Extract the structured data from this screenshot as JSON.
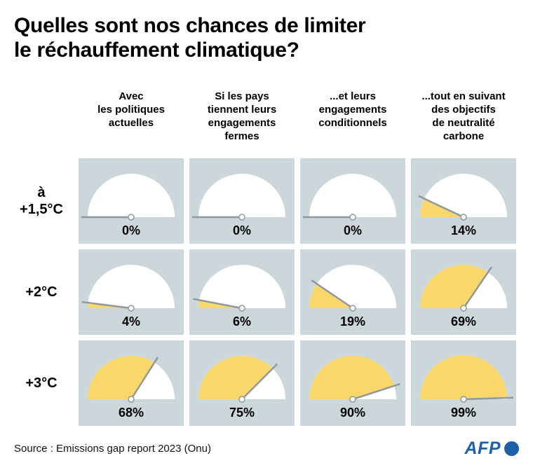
{
  "title": "Quelles sont nos chances de limiter\nle réchauffement climatique?",
  "columns": [
    "Avec\nles politiques\nactuelles",
    "Si les pays\ntiennent leurs\nengagements\nfermes",
    "...et leurs\nengagements\nconditionnels",
    "...tout en suivant\ndes objectifs\nde neutralité\ncarbone"
  ],
  "row_labels": [
    "à\n+1,5°C",
    "+2°C",
    "+3°C"
  ],
  "chart_data": {
    "type": "gauge",
    "unit": "%",
    "range": [
      0,
      100
    ],
    "title": "Quelles sont nos chances de limiter le réchauffement climatique?",
    "columns": [
      "Avec les politiques actuelles",
      "Si les pays tiennent leurs engagements fermes",
      "...et leurs engagements conditionnels",
      "...tout en suivant des objectifs de neutralité carbone"
    ],
    "rows": [
      "à +1,5°C",
      "+2°C",
      "+3°C"
    ],
    "values": [
      [
        0,
        0,
        0,
        14
      ],
      [
        4,
        6,
        19,
        69
      ],
      [
        68,
        75,
        90,
        99
      ]
    ],
    "labels": [
      [
        "0%",
        "0%",
        "0%",
        "14%"
      ],
      [
        "4%",
        "6%",
        "19%",
        "69%"
      ],
      [
        "68%",
        "75%",
        "90%",
        "99%"
      ]
    ]
  },
  "footer": {
    "source": "Source : Emissions gap report 2023 (Onu)",
    "logo_text": "AFP"
  },
  "colors": {
    "cell_bg": "#ccd7dc",
    "gauge_face": "#ffffff",
    "gauge_fill": "#f9d76a",
    "needle": "#8f989e",
    "afp_blue": "#2060a9"
  }
}
